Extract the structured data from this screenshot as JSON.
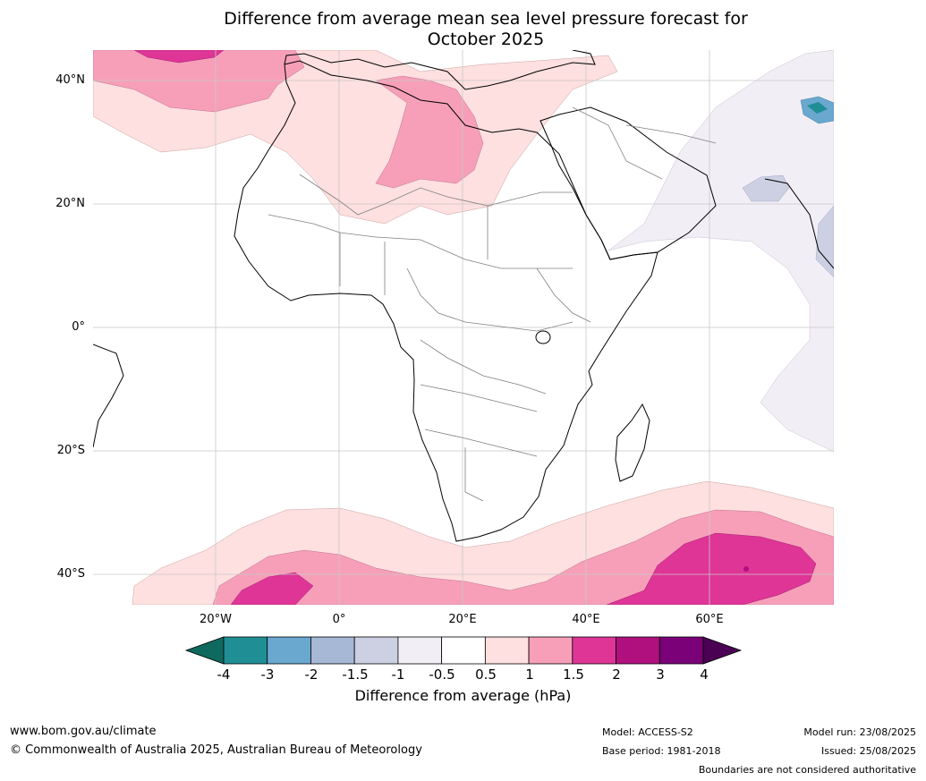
{
  "title_line1": "Difference from average mean sea level pressure forecast for",
  "title_line2": "October 2025",
  "lat_labels": [
    "40°N",
    "20°N",
    "0°",
    "20°S",
    "40°S"
  ],
  "lon_labels": [
    "20°W",
    "0°",
    "20°E",
    "40°E",
    "60°E"
  ],
  "colorbar": {
    "ticks": [
      "-4",
      "-3",
      "-2",
      "-1.5",
      "-1",
      "-0.5",
      "0.5",
      "1",
      "1.5",
      "2",
      "3",
      "4"
    ],
    "colors": [
      "#0e6a5e",
      "#1f8f95",
      "#6aa8d0",
      "#a6b8d6",
      "#cdd0e3",
      "#f2eef5",
      "#ffffff",
      "#fde0df",
      "#f79fb9",
      "#de3597",
      "#b0107e",
      "#7a0177",
      "#4a0053"
    ],
    "label": "Difference from average (hPa)"
  },
  "footer": {
    "url": "www.bom.gov.au/climate",
    "copyright": "© Commonwealth of Australia 2025, Australian Bureau of Meteorology",
    "model": "Model: ACCESS-S2",
    "base_period": "Base period: 1981-2018",
    "model_run": "Model run: 23/08/2025",
    "issued": "Issued: 25/08/2025",
    "disclaimer": "Boundaries are not considered authoritative"
  }
}
